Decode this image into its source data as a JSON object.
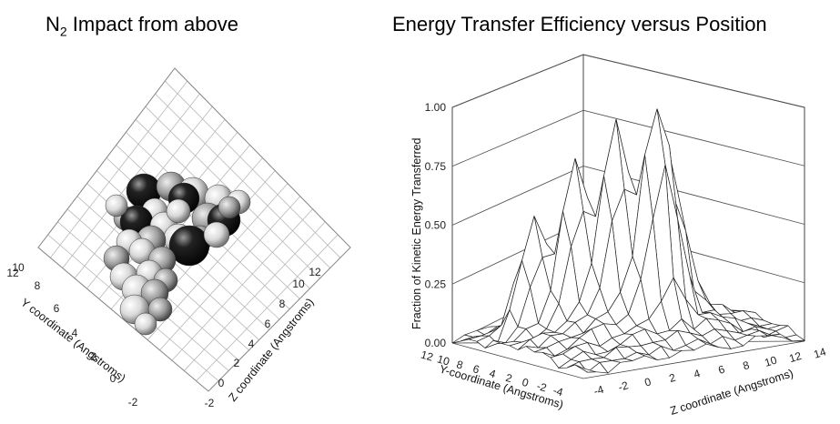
{
  "left_panel": {
    "title": "N",
    "title_sub": "2",
    "title_rest": " Impact from above",
    "y_axis_label": "Y coordinate (Angstroms)",
    "z_axis_label": "Z coordinate (Angstroms)",
    "y_ticks": [
      "-2",
      "0",
      "2",
      "4",
      "6",
      "8",
      "10",
      "12"
    ],
    "z_ticks": [
      "-2",
      "0",
      "2",
      "4",
      "6",
      "8",
      "10",
      "12"
    ]
  },
  "chart_data": {
    "type": "surface",
    "title": "Energy Transfer Efficiency versus Position",
    "zlabel": "Fraction of Kinetic Energy Transferred",
    "xlabel": "Y-coordinate (Angstroms)",
    "ylabel": "Z coordinate (Angstroms)",
    "z_ticks": [
      "0.00",
      "0.25",
      "0.50",
      "0.75",
      "1.00"
    ],
    "zlim": [
      0,
      1
    ],
    "y_coordinate_ticks": [
      "12",
      "10",
      "8",
      "6",
      "4",
      "2",
      "0",
      "-2",
      "-4"
    ],
    "z_coordinate_ticks": [
      "-4",
      "-2",
      "0",
      "2",
      "4",
      "6",
      "8",
      "10",
      "12",
      "14"
    ],
    "peaks": [
      {
        "y": 2,
        "z": 6,
        "value": 0.94
      },
      {
        "y": 4,
        "z": 4,
        "value": 0.76
      },
      {
        "y": 4,
        "z": 8,
        "value": 0.7
      },
      {
        "y": 6,
        "z": 2,
        "value": 0.63
      },
      {
        "y": 8,
        "z": 0,
        "value": 0.48
      }
    ]
  }
}
